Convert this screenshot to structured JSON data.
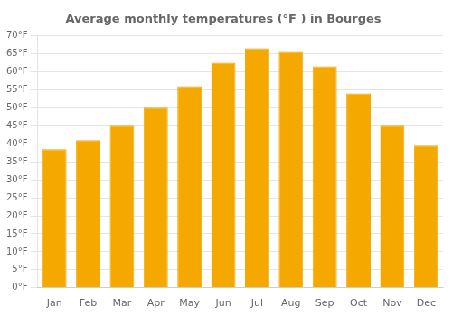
{
  "chart_data": {
    "type": "bar",
    "title": "Average monthly temperatures (°F ) in Bourges",
    "categories": [
      "Jan",
      "Feb",
      "Mar",
      "Apr",
      "May",
      "Jun",
      "Jul",
      "Aug",
      "Sep",
      "Oct",
      "Nov",
      "Dec"
    ],
    "values": [
      38.5,
      41.0,
      45.0,
      50.0,
      56.0,
      62.5,
      66.5,
      65.5,
      61.5,
      54.0,
      45.0,
      39.5
    ],
    "color": "#F5A800",
    "ylim": [
      0,
      70
    ],
    "yticks": [
      {
        "value": 0,
        "label": "0°F"
      },
      {
        "value": 5,
        "label": "5°F"
      },
      {
        "value": 10,
        "label": "10°F"
      },
      {
        "value": 15,
        "label": "15°F"
      },
      {
        "value": 20,
        "label": "20°F"
      },
      {
        "value": 25,
        "label": "25°F"
      },
      {
        "value": 30,
        "label": "30°F"
      },
      {
        "value": 35,
        "label": "35°F"
      },
      {
        "value": 40,
        "label": "40°F"
      },
      {
        "value": 45,
        "label": "45°F"
      },
      {
        "value": 50,
        "label": "50°F"
      },
      {
        "value": 55,
        "label": "55°F"
      },
      {
        "value": 60,
        "label": "60°F"
      },
      {
        "value": 65,
        "label": "65°F"
      },
      {
        "value": 70,
        "label": "70°F"
      }
    ],
    "grid": true
  }
}
